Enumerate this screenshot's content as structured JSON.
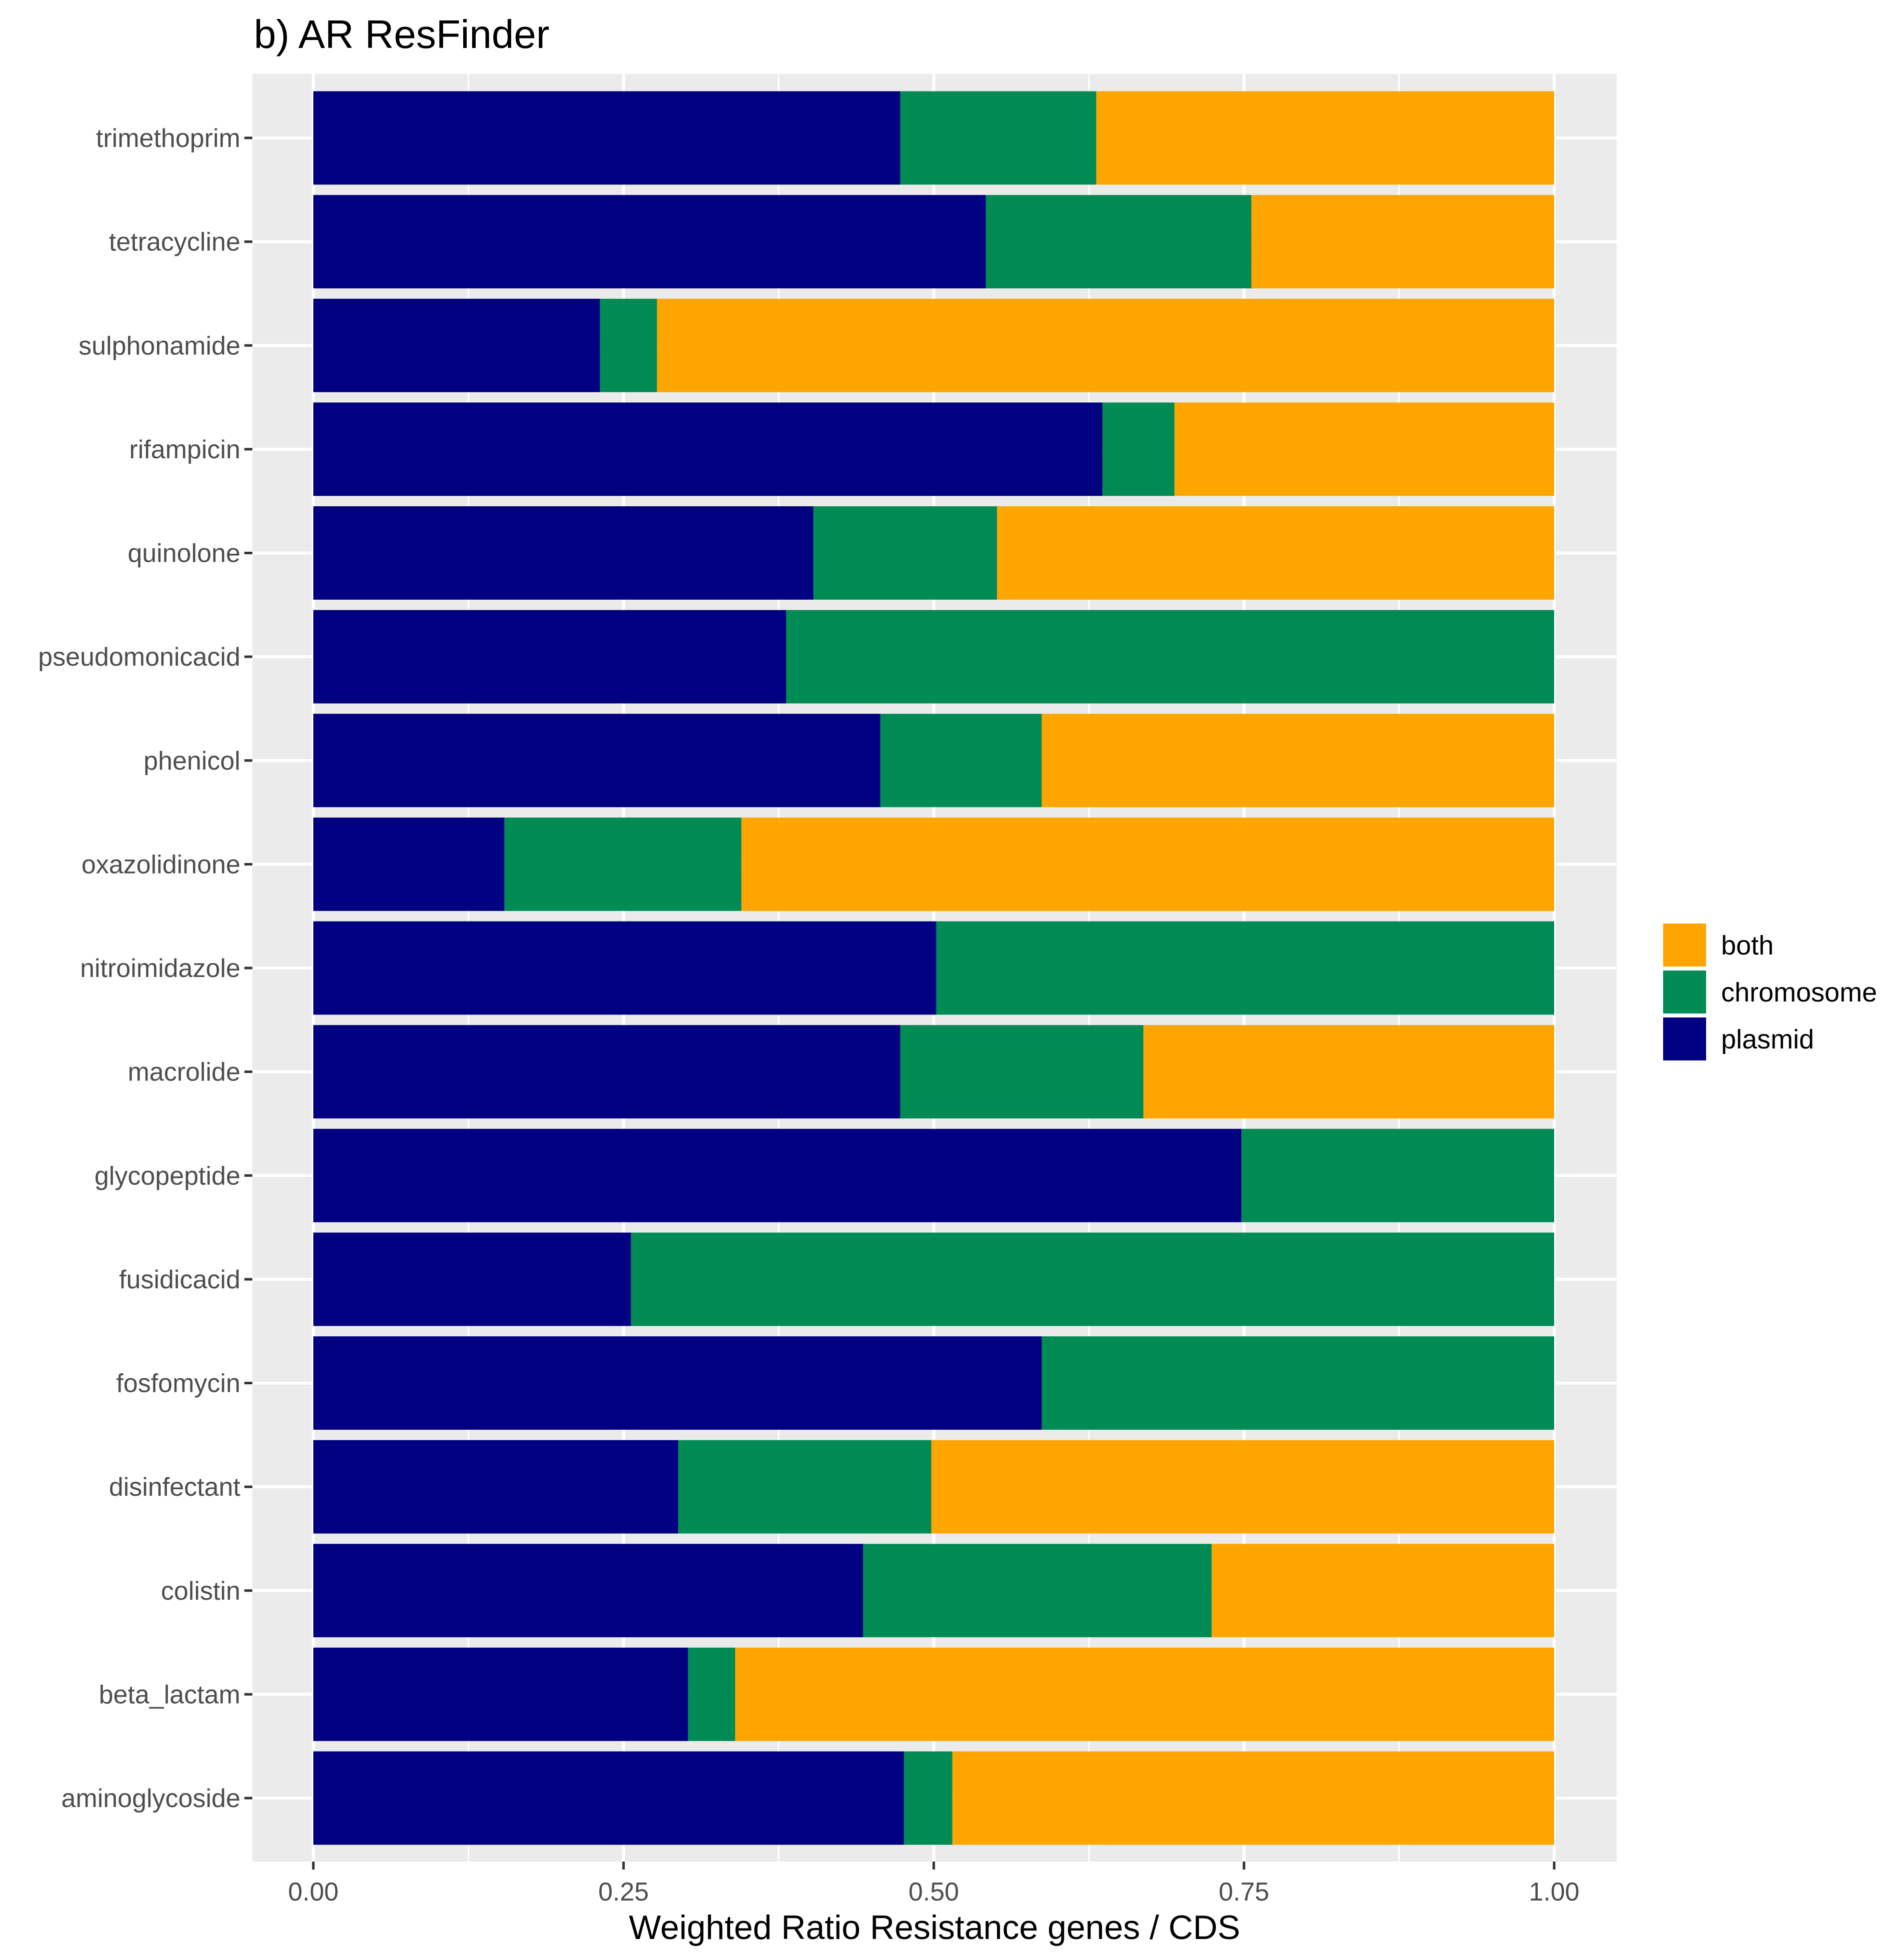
{
  "chart_data": {
    "type": "bar",
    "orientation": "horizontal",
    "stacked": true,
    "title": "b) AR ResFinder",
    "xlabel": "Weighted Ratio Resistance genes / CDS",
    "ylabel": "",
    "xlim": [
      0,
      1
    ],
    "x_ticks": [
      "0.00",
      "0.25",
      "0.50",
      "0.75",
      "1.00"
    ],
    "x_tick_values": [
      0,
      0.25,
      0.5,
      0.75,
      1.0
    ],
    "grid": true,
    "legend_position": "right",
    "categories": [
      "trimethoprim",
      "tetracycline",
      "sulphonamide",
      "rifampicin",
      "quinolone",
      "pseudomonicacid",
      "phenicol",
      "oxazolidinone",
      "nitroimidazole",
      "macrolide",
      "glycopeptide",
      "fusidicacid",
      "fosfomycin",
      "disinfectant",
      "colistin",
      "beta_lactam",
      "aminoglycoside"
    ],
    "series": [
      {
        "name": "plasmid",
        "color": "#000080",
        "values": [
          0.473,
          0.542,
          0.231,
          0.636,
          0.403,
          0.381,
          0.457,
          0.154,
          0.502,
          0.473,
          0.748,
          0.256,
          0.587,
          0.294,
          0.443,
          0.302,
          0.476
        ]
      },
      {
        "name": "chromosome",
        "color": "#008B55",
        "values": [
          0.158,
          0.214,
          0.046,
          0.058,
          0.148,
          0.619,
          0.13,
          0.191,
          0.498,
          0.196,
          0.252,
          0.744,
          0.413,
          0.204,
          0.281,
          0.038,
          0.039
        ]
      },
      {
        "name": "both",
        "color": "#FFA500",
        "values": [
          0.369,
          0.244,
          0.723,
          0.306,
          0.449,
          0.0,
          0.413,
          0.655,
          0.0,
          0.331,
          0.0,
          0.0,
          0.0,
          0.502,
          0.276,
          0.66,
          0.485
        ]
      }
    ],
    "legend": [
      {
        "name": "both",
        "color": "#FFA500"
      },
      {
        "name": "chromosome",
        "color": "#008B55"
      },
      {
        "name": "plasmid",
        "color": "#000080"
      }
    ],
    "colors": {
      "panel_background": "#EBEBEB",
      "grid": "#FFFFFF",
      "axis_text": "#4D4D4D"
    }
  }
}
